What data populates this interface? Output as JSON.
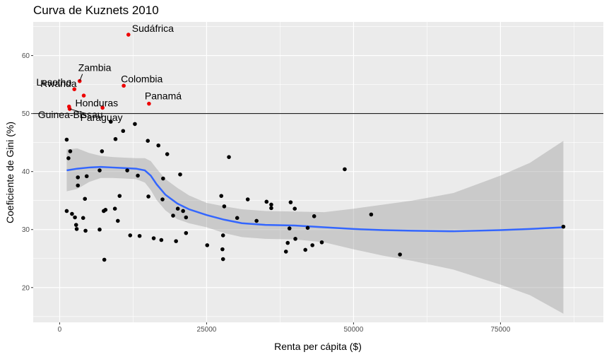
{
  "chart_data": {
    "type": "scatter",
    "title": "Curva de Kuznets 2010",
    "xlabel": "Renta per cápita ($)",
    "ylabel": "Coeficiente de Gini (%)",
    "xlim": [
      -4500,
      92500
    ],
    "ylim": [
      14,
      65.8
    ],
    "x_ticks": [
      0,
      25000,
      50000,
      75000
    ],
    "x_tick_labels": [
      "0",
      "25000",
      "50000",
      "75000"
    ],
    "y_ticks": [
      20,
      30,
      40,
      50,
      60
    ],
    "y_tick_labels": [
      "20",
      "30",
      "40",
      "50",
      "60"
    ],
    "hline": 50,
    "grid": true,
    "colors": {
      "panel": "#ebebeb",
      "grid": "#ffffff",
      "points": "#000000",
      "highlight": "#ee0000",
      "smooth_line": "#3366ff",
      "band": "#999999"
    },
    "highlighted": [
      {
        "name": "Sudáfrica",
        "x": 11700,
        "y": 63.6
      },
      {
        "name": "Zambia",
        "x": 3400,
        "y": 55.6
      },
      {
        "name": "Colombia",
        "x": 10900,
        "y": 54.8
      },
      {
        "name": "Lesotho",
        "x": 2500,
        "y": 54.2
      },
      {
        "name": "Rwanda",
        "x": 4100,
        "y": 53.1
      },
      {
        "name": "Panamá",
        "x": 15200,
        "y": 51.7
      },
      {
        "name": "Honduras",
        "x": 7300,
        "y": 51.0
      },
      {
        "name": "Guinea-Bissau",
        "x": 1600,
        "y": 51.2
      },
      {
        "name": "Paraguay",
        "x": 1700,
        "y": 50.8
      }
    ],
    "points": [
      [
        1200,
        45.5
      ],
      [
        1500,
        42.3
      ],
      [
        1800,
        43.5
      ],
      [
        7200,
        43.5
      ],
      [
        9500,
        45.6
      ],
      [
        8700,
        48.6
      ],
      [
        12800,
        48.2
      ],
      [
        10800,
        47.0
      ],
      [
        15000,
        45.3
      ],
      [
        16800,
        44.5
      ],
      [
        18300,
        43.0
      ],
      [
        20500,
        39.5
      ],
      [
        28800,
        42.5
      ],
      [
        48500,
        40.4
      ],
      [
        11500,
        40.2
      ],
      [
        13300,
        39.3
      ],
      [
        6800,
        40.2
      ],
      [
        3100,
        39.0
      ],
      [
        4600,
        39.2
      ],
      [
        17600,
        38.8
      ],
      [
        3100,
        37.6
      ],
      [
        4300,
        35.3
      ],
      [
        10200,
        35.8
      ],
      [
        15100,
        35.7
      ],
      [
        17500,
        35.2
      ],
      [
        27500,
        35.8
      ],
      [
        32000,
        35.2
      ],
      [
        35200,
        34.8
      ],
      [
        36000,
        34.3
      ],
      [
        39300,
        34.7
      ],
      [
        20100,
        33.6
      ],
      [
        21000,
        33.2
      ],
      [
        19300,
        32.4
      ],
      [
        21500,
        32.1
      ],
      [
        28000,
        34.0
      ],
      [
        36000,
        33.7
      ],
      [
        40000,
        33.6
      ],
      [
        43300,
        32.3
      ],
      [
        53000,
        32.6
      ],
      [
        30200,
        32.0
      ],
      [
        33500,
        31.5
      ],
      [
        1200,
        33.2
      ],
      [
        2100,
        32.7
      ],
      [
        2600,
        32.1
      ],
      [
        4000,
        32.0
      ],
      [
        7500,
        33.2
      ],
      [
        9400,
        33.6
      ],
      [
        7800,
        33.4
      ],
      [
        9900,
        31.5
      ],
      [
        2800,
        30.8
      ],
      [
        2900,
        30.1
      ],
      [
        4400,
        29.8
      ],
      [
        6800,
        30.0
      ],
      [
        12000,
        29.0
      ],
      [
        13600,
        28.9
      ],
      [
        16000,
        28.5
      ],
      [
        17300,
        28.2
      ],
      [
        19800,
        28.0
      ],
      [
        21500,
        29.4
      ],
      [
        27800,
        29.0
      ],
      [
        25100,
        27.3
      ],
      [
        27700,
        26.6
      ],
      [
        27800,
        24.9
      ],
      [
        7600,
        24.8
      ],
      [
        39100,
        30.2
      ],
      [
        42200,
        30.3
      ],
      [
        40100,
        28.4
      ],
      [
        38800,
        27.7
      ],
      [
        38500,
        26.2
      ],
      [
        41800,
        26.5
      ],
      [
        43000,
        27.3
      ],
      [
        44600,
        27.8
      ],
      [
        57900,
        25.7
      ],
      [
        85700,
        30.5
      ]
    ],
    "smooth_line": [
      [
        1200,
        40.2
      ],
      [
        3000,
        40.5
      ],
      [
        5000,
        40.7
      ],
      [
        7000,
        40.8
      ],
      [
        9000,
        40.7
      ],
      [
        11000,
        40.6
      ],
      [
        13000,
        40.5
      ],
      [
        14500,
        40.2
      ],
      [
        15500,
        39.3
      ],
      [
        16500,
        37.8
      ],
      [
        18000,
        36.0
      ],
      [
        20000,
        34.5
      ],
      [
        22000,
        33.5
      ],
      [
        25000,
        32.5
      ],
      [
        28000,
        31.7
      ],
      [
        31000,
        31.1
      ],
      [
        35000,
        30.8
      ],
      [
        40000,
        30.7
      ],
      [
        45000,
        30.4
      ],
      [
        50000,
        30.1
      ],
      [
        55000,
        29.9
      ],
      [
        60000,
        29.8
      ],
      [
        67000,
        29.7
      ],
      [
        75000,
        29.9
      ],
      [
        80000,
        30.1
      ],
      [
        85700,
        30.4
      ]
    ],
    "smooth_upper": [
      [
        1200,
        43.8
      ],
      [
        3000,
        44.0
      ],
      [
        5000,
        43.2
      ],
      [
        7000,
        42.7
      ],
      [
        9000,
        42.5
      ],
      [
        11000,
        42.4
      ],
      [
        13000,
        42.3
      ],
      [
        14500,
        42.3
      ],
      [
        15500,
        41.8
      ],
      [
        16500,
        40.5
      ],
      [
        18000,
        38.7
      ],
      [
        20000,
        37.2
      ],
      [
        22000,
        35.9
      ],
      [
        25000,
        34.6
      ],
      [
        28000,
        34.0
      ],
      [
        31000,
        33.5
      ],
      [
        35000,
        33.2
      ],
      [
        40000,
        33.1
      ],
      [
        45000,
        33.0
      ],
      [
        50000,
        33.6
      ],
      [
        55000,
        34.3
      ],
      [
        60000,
        35.0
      ],
      [
        67000,
        36.3
      ],
      [
        75000,
        39.3
      ],
      [
        80000,
        41.5
      ],
      [
        85700,
        45.3
      ]
    ],
    "smooth_lower": [
      [
        1200,
        36.6
      ],
      [
        3000,
        37.0
      ],
      [
        5000,
        38.2
      ],
      [
        7000,
        38.9
      ],
      [
        9000,
        38.9
      ],
      [
        11000,
        38.8
      ],
      [
        13000,
        38.7
      ],
      [
        14500,
        38.1
      ],
      [
        15500,
        36.8
      ],
      [
        16500,
        35.1
      ],
      [
        18000,
        33.3
      ],
      [
        20000,
        31.8
      ],
      [
        22000,
        31.1
      ],
      [
        25000,
        30.4
      ],
      [
        28000,
        29.4
      ],
      [
        31000,
        28.7
      ],
      [
        35000,
        28.4
      ],
      [
        40000,
        28.3
      ],
      [
        45000,
        27.8
      ],
      [
        50000,
        26.6
      ],
      [
        55000,
        25.5
      ],
      [
        60000,
        24.6
      ],
      [
        67000,
        23.1
      ],
      [
        75000,
        20.5
      ],
      [
        80000,
        18.7
      ],
      [
        85700,
        15.5
      ]
    ]
  }
}
